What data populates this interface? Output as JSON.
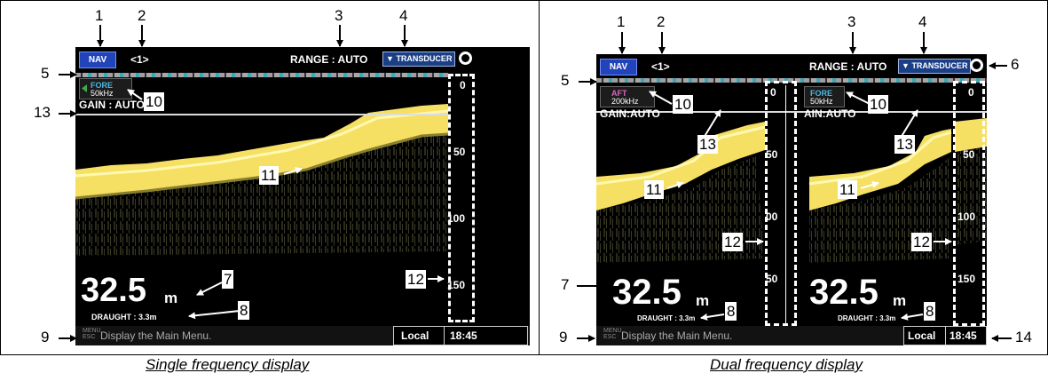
{
  "callouts": {
    "n1": "1",
    "n2": "2",
    "n3": "3",
    "n4": "4",
    "n5": "5",
    "n6": "6",
    "n7": "7",
    "n8": "8",
    "n9": "9",
    "n10": "10",
    "n11": "11",
    "n12": "12",
    "n13": "13",
    "n14": "14"
  },
  "single": {
    "caption": "Single frequency display",
    "nav_label": "NAV",
    "screen_no": "<1>",
    "range": "RANGE : AUTO",
    "transducer": "TRANSDUCER",
    "channel": {
      "name": "FORE",
      "freq": "50kHz"
    },
    "gain": "GAIN : AUTO",
    "scale": [
      "0",
      "50",
      "100",
      "150"
    ],
    "depth": "32.5",
    "unit": "m",
    "draught": "DRAUGHT : 3.3m",
    "menu_key_top": "MENU",
    "menu_key_bottom": "ESC",
    "menu_text": "Display the Main Menu.",
    "time_zone": "Local",
    "time": "18:45"
  },
  "dual": {
    "caption": "Dual frequency display",
    "nav_label": "NAV",
    "screen_no": "<1>",
    "range": "RANGE : AUTO",
    "transducer": "TRANSDUCER",
    "left_channel": {
      "name": "AFT",
      "freq": "200kHz"
    },
    "right_channel": {
      "name": "FORE",
      "freq": "50kHz"
    },
    "gain_left": "GAIN:AUTO",
    "gain_right": "AIN:AUTO",
    "left_scale": [
      "0",
      "50",
      "00",
      "50"
    ],
    "right_scale": [
      "0",
      "50",
      "100",
      "150"
    ],
    "depth_left": "32.5",
    "depth_right": "32.5",
    "unit": "m",
    "draught": "DRAUGHT : 3.3m",
    "menu_key_top": "MENU",
    "menu_key_bottom": "ESC",
    "menu_text": "Display the Main Menu.",
    "time_zone": "Local",
    "time": "18:45"
  },
  "colors": {
    "echo": "#f5e063",
    "status_bar": "#000000",
    "nav_button": "#2244bb"
  }
}
